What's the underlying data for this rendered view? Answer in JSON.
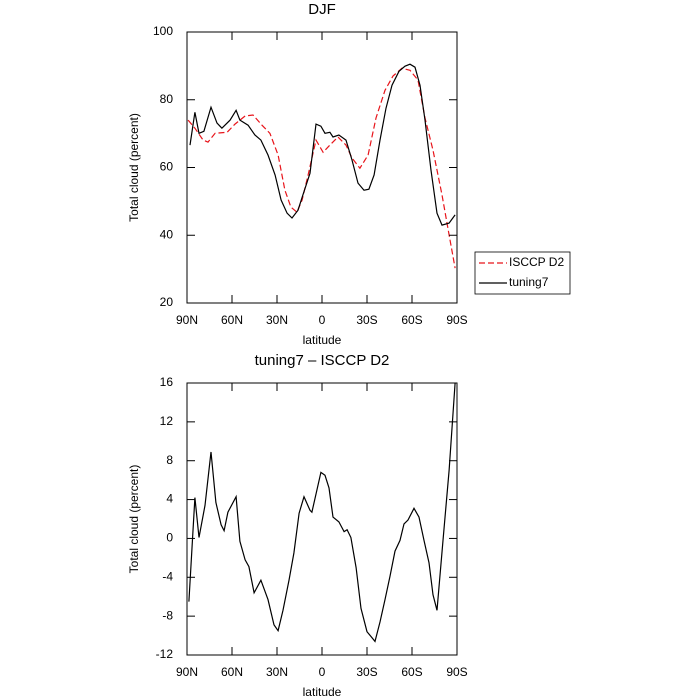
{
  "chart_data": [
    {
      "type": "line",
      "title": "DJF",
      "xlabel": "latitude",
      "ylabel": "Total cloud (percent)",
      "xlim": [
        90,
        -90
      ],
      "xticks": [
        {
          "value": 90,
          "label": "90N"
        },
        {
          "value": 60,
          "label": "60N"
        },
        {
          "value": 30,
          "label": "30N"
        },
        0,
        {
          "value": -30,
          "label": "30S"
        },
        {
          "value": -60,
          "label": "60S"
        },
        {
          "value": -90,
          "label": "90S"
        }
      ],
      "ylim": [
        20,
        100
      ],
      "yticks": [
        20,
        40,
        60,
        80,
        100
      ],
      "legend": "right",
      "series": [
        {
          "name": "ISCCP D2",
          "color": "#e8141a",
          "linestyle": "dashed",
          "x": [
            89.3,
            84.7,
            79.3,
            76,
            71.3,
            63.3,
            58,
            51.3,
            46,
            40,
            34.7,
            29.3,
            24.7,
            20.7,
            16.7,
            13.3,
            9.3,
            4,
            -0.7,
            -5.3,
            -10.7,
            -16,
            -20,
            -25.3,
            -30.7,
            -36,
            -42,
            -47.3,
            -53.3,
            -58.7,
            -64,
            -68.7,
            -74,
            -80,
            -84.7,
            -88.7
          ],
          "values": [
            74,
            71.6,
            68.1,
            67.5,
            70.1,
            70.4,
            72.8,
            75.2,
            75.5,
            72.5,
            70.1,
            63.7,
            53.3,
            48.3,
            46.8,
            50.4,
            57.8,
            68.1,
            64.5,
            66.6,
            69,
            66.6,
            62.8,
            59.8,
            63.7,
            74.6,
            82.8,
            87,
            89.3,
            88.7,
            85.8,
            74.6,
            65.1,
            51.9,
            40.1,
            30.3
          ]
        },
        {
          "name": "tuning7",
          "color": "#000000",
          "linestyle": "solid",
          "x": [
            88,
            84.7,
            82,
            78.7,
            74,
            70,
            66.7,
            61.3,
            57.3,
            54.7,
            49.3,
            44.7,
            40.7,
            36,
            31.3,
            27.3,
            23.3,
            20,
            16,
            12.7,
            8,
            4,
            0.7,
            -2,
            -5.3,
            -7.3,
            -11.3,
            -16,
            -20,
            -24,
            -28,
            -31.3,
            -34.7,
            -38.7,
            -42.7,
            -46.7,
            -51.3,
            -55.3,
            -58.7,
            -62,
            -65.3,
            -68.7,
            -72.7,
            -76.7,
            -80,
            -84.7,
            -88.7
          ],
          "values": [
            66.6,
            76.3,
            70.1,
            70.7,
            77.8,
            73.1,
            71.6,
            74,
            76.9,
            74,
            72.5,
            69.6,
            68.1,
            63.7,
            57.8,
            50.4,
            46.5,
            45.1,
            47.4,
            51.9,
            58.3,
            72.8,
            72.2,
            70.1,
            70.4,
            69,
            69.6,
            68.1,
            62.2,
            55.4,
            53.3,
            53.6,
            57.8,
            68.1,
            77.5,
            84.3,
            88.4,
            89.9,
            90.5,
            89.6,
            84.3,
            74,
            59.2,
            46.5,
            43,
            43.6,
            46
          ]
        }
      ]
    },
    {
      "type": "line",
      "title": "tuning7 – ISCCP D2",
      "xlabel": "latitude",
      "ylabel": "Total cloud (percent)",
      "xlim": [
        90,
        -90
      ],
      "xticks": [
        {
          "value": 90,
          "label": "90N"
        },
        {
          "value": 60,
          "label": "60N"
        },
        {
          "value": 30,
          "label": "30N"
        },
        0,
        {
          "value": -30,
          "label": "30S"
        },
        {
          "value": -60,
          "label": "60S"
        },
        {
          "value": -90,
          "label": "90S"
        }
      ],
      "ylim": [
        -12,
        16
      ],
      "yticks": [
        -12,
        -8,
        -4,
        0,
        4,
        8,
        12,
        16
      ],
      "series": [
        {
          "color": "#000000",
          "linestyle": "solid",
          "x": [
            88.7,
            84.7,
            82,
            78,
            74,
            70.7,
            67.3,
            65.3,
            62.7,
            57.3,
            54.7,
            51.3,
            48.7,
            45.3,
            40.7,
            36,
            32,
            29.3,
            26,
            22,
            18.7,
            15.3,
            12,
            8,
            6.7,
            0.7,
            -2,
            -4.7,
            -7.3,
            -11.3,
            -14.7,
            -16.7,
            -19.3,
            -22.7,
            -26,
            -30,
            -32.7,
            -35.3,
            -38.7,
            -42,
            -45.3,
            -48.7,
            -52,
            -54.7,
            -57.3,
            -61.3,
            -64.7,
            -68,
            -71.3,
            -74,
            -76.7,
            -80.7,
            -84.7,
            -88.7
          ],
          "values": [
            -6.5,
            4.2,
            0.1,
            3.4,
            8.9,
            3.7,
            1.4,
            0.8,
            2.7,
            4.3,
            -0.3,
            -2.2,
            -2.9,
            -5.6,
            -4.3,
            -6.3,
            -8.9,
            -9.5,
            -7.4,
            -4.3,
            -1.5,
            2.6,
            4.3,
            2.9,
            2.7,
            6.8,
            6.5,
            5.2,
            2.2,
            1.7,
            0.7,
            0.9,
            0.1,
            -3,
            -7.2,
            -9.6,
            -10.1,
            -10.6,
            -8.6,
            -6.3,
            -3.9,
            -1.3,
            -0.2,
            1.5,
            1.9,
            3.1,
            2.2,
            -0.2,
            -2.5,
            -5.8,
            -7.4,
            -0.2,
            7,
            16
          ]
        }
      ]
    }
  ]
}
